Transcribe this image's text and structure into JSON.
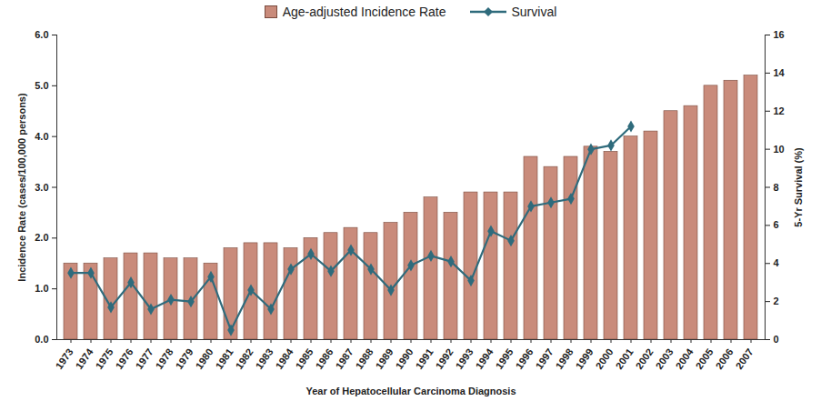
{
  "chart_data": {
    "type": "bar",
    "x_label": "Year of Hepatocellular Carcinoma Diagnosis",
    "y_label": "Incidence Rate (cases/100,000 persons)",
    "y2_label": "5-Yr Survival (%)",
    "categories": [
      "1973",
      "1974",
      "1975",
      "1976",
      "1977",
      "1978",
      "1979",
      "1980",
      "1981",
      "1982",
      "1983",
      "1984",
      "1985",
      "1986",
      "1987",
      "1988",
      "1989",
      "1990",
      "1991",
      "1992",
      "1993",
      "1994",
      "1995",
      "1996",
      "1997",
      "1998",
      "1999",
      "2000",
      "2001",
      "2002",
      "2003",
      "2004",
      "2005",
      "2006",
      "2007"
    ],
    "series": [
      {
        "name": "Age-adjusted Incidence Rate",
        "type": "bar",
        "color": "#c98b7b",
        "values": [
          1.5,
          1.5,
          1.6,
          1.7,
          1.7,
          1.6,
          1.6,
          1.5,
          1.8,
          1.9,
          1.9,
          1.8,
          2.0,
          2.1,
          2.2,
          2.1,
          2.3,
          2.5,
          2.8,
          2.5,
          2.9,
          2.9,
          2.9,
          3.6,
          3.4,
          3.6,
          3.8,
          3.7,
          4.0,
          4.1,
          4.5,
          4.6,
          5.0,
          5.1,
          5.2
        ]
      },
      {
        "name": "Survival",
        "type": "line",
        "axis": "y2",
        "color": "#2f6b7c",
        "marker": "diamond",
        "values": [
          3.5,
          3.5,
          1.7,
          3.0,
          1.6,
          2.1,
          2.0,
          3.3,
          0.5,
          2.6,
          1.6,
          3.7,
          4.5,
          3.6,
          4.7,
          3.7,
          2.6,
          3.9,
          4.4,
          4.1,
          3.1,
          5.7,
          5.2,
          7.0,
          7.2,
          7.4,
          10.0,
          10.2,
          11.2,
          null,
          null,
          null,
          null,
          null,
          null
        ]
      }
    ],
    "ylim": [
      0,
      6
    ],
    "yticks": [
      0,
      1,
      2,
      3,
      4,
      5,
      6
    ],
    "y2lim": [
      0,
      16
    ],
    "y2ticks": [
      0,
      2,
      4,
      6,
      8,
      10,
      12,
      14,
      16
    ],
    "legend": "top"
  }
}
